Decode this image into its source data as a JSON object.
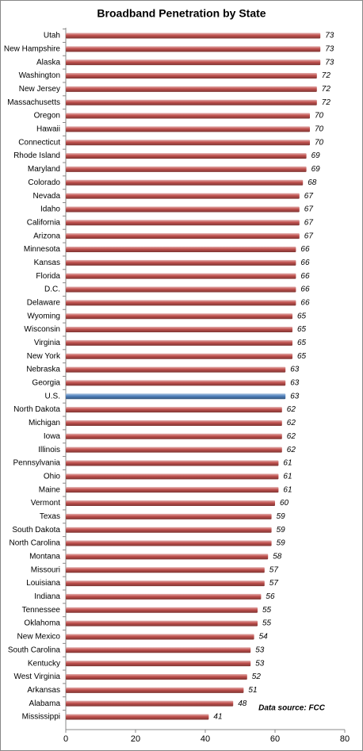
{
  "chart_data": {
    "type": "bar",
    "orientation": "horizontal",
    "title": "Broadband Penetration by State",
    "annotation": "Data source: FCC",
    "categories": [
      "Utah",
      "New Hampshire",
      "Alaska",
      "Washington",
      "New Jersey",
      "Massachusetts",
      "Oregon",
      "Hawaii",
      "Connecticut",
      "Rhode Island",
      "Maryland",
      "Colorado",
      "Nevada",
      "Idaho",
      "California",
      "Arizona",
      "Minnesota",
      "Kansas",
      "Florida",
      "D.C.",
      "Delaware",
      "Wyoming",
      "Wisconsin",
      "Virginia",
      "New York",
      "Nebraska",
      "Georgia",
      "U.S.",
      "North Dakota",
      "Michigan",
      "Iowa",
      "Illinois",
      "Pennsylvania",
      "Ohio",
      "Maine",
      "Vermont",
      "Texas",
      "South Dakota",
      "North Carolina",
      "Montana",
      "Missouri",
      "Louisiana",
      "Indiana",
      "Tennessee",
      "Oklahoma",
      "New Mexico",
      "South Carolina",
      "Kentucky",
      "West Virginia",
      "Arkansas",
      "Alabama",
      "Mississippi"
    ],
    "values": [
      73,
      73,
      73,
      72,
      72,
      72,
      70,
      70,
      70,
      69,
      69,
      68,
      67,
      67,
      67,
      67,
      66,
      66,
      66,
      66,
      66,
      65,
      65,
      65,
      65,
      63,
      63,
      63,
      62,
      62,
      62,
      62,
      61,
      61,
      61,
      60,
      59,
      59,
      59,
      58,
      57,
      57,
      56,
      55,
      55,
      54,
      53,
      53,
      52,
      51,
      48,
      41
    ],
    "colors": [
      "#c0504d",
      "#c0504d",
      "#c0504d",
      "#c0504d",
      "#c0504d",
      "#c0504d",
      "#c0504d",
      "#c0504d",
      "#c0504d",
      "#c0504d",
      "#c0504d",
      "#c0504d",
      "#c0504d",
      "#c0504d",
      "#c0504d",
      "#c0504d",
      "#c0504d",
      "#c0504d",
      "#c0504d",
      "#c0504d",
      "#c0504d",
      "#c0504d",
      "#c0504d",
      "#c0504d",
      "#c0504d",
      "#c0504d",
      "#c0504d",
      "#4f81bd",
      "#c0504d",
      "#c0504d",
      "#c0504d",
      "#c0504d",
      "#c0504d",
      "#c0504d",
      "#c0504d",
      "#c0504d",
      "#c0504d",
      "#c0504d",
      "#c0504d",
      "#c0504d",
      "#c0504d",
      "#c0504d",
      "#c0504d",
      "#c0504d",
      "#c0504d",
      "#c0504d",
      "#c0504d",
      "#c0504d",
      "#c0504d",
      "#c0504d",
      "#c0504d",
      "#c0504d"
    ],
    "xlim": [
      0,
      80
    ],
    "xticks": [
      0,
      20,
      40,
      60,
      80
    ],
    "grid": false
  }
}
